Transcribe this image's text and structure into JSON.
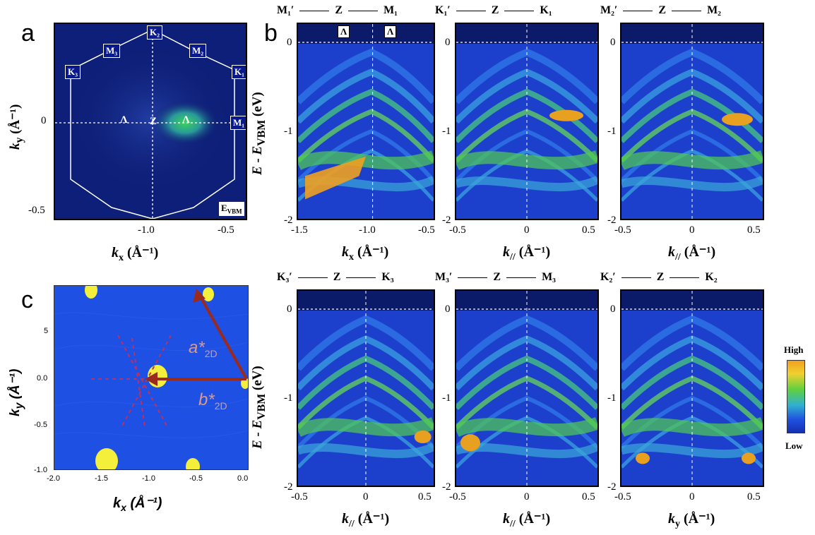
{
  "panel_a": {
    "letter": "a",
    "points": {
      "K2": "K₂",
      "M3": "M₃",
      "M2": "M₂",
      "K3": "K₃",
      "K1": "K₁",
      "M1": "M₁",
      "Lambda_left": "Λ",
      "Z": "Z",
      "Lambda_right": "Λ"
    },
    "corner_label": "E",
    "corner_label_sub": "VBM",
    "yticks": [
      "0",
      "-0.5"
    ],
    "xticks": [
      "-1.0",
      "-0.5"
    ],
    "ylabel_main": "k",
    "ylabel_sub": "y",
    "ylabel_unit": " (Å⁻¹)",
    "xlabel_main": "k",
    "xlabel_sub": "x",
    "xlabel_unit": " (Å⁻¹)"
  },
  "panel_b": {
    "letter": "b",
    "ylabel": "E - E",
    "ylabel_sub": "VBM",
    "ylabel_unit": " (eV)",
    "panels": [
      {
        "left": "M₁′",
        "mid": "Z",
        "right": "M₁",
        "xticks": [
          "-1.5",
          "-1.0",
          "-0.5"
        ],
        "xlabel": "k",
        "xsub": "x",
        "yticks": [
          "0",
          "-1",
          "-2"
        ],
        "markers": [
          "Λ",
          "Λ"
        ]
      },
      {
        "left": "K₁′",
        "mid": "Z",
        "right": "K₁",
        "xticks": [
          "-0.5",
          "0",
          "0.5"
        ],
        "xlabel": "k",
        "xsub": "//",
        "yticks": [
          "0",
          "-1",
          "-2"
        ]
      },
      {
        "left": "M₂′",
        "mid": "Z",
        "right": "M₂",
        "xticks": [
          "-0.5",
          "0",
          "0.5"
        ],
        "xlabel": "k",
        "xsub": "//",
        "yticks": [
          "0",
          "-1",
          "-2"
        ]
      },
      {
        "left": "K₃′",
        "mid": "Z",
        "right": "K₃",
        "xticks": [
          "-0.5",
          "0",
          "0.5"
        ],
        "xlabel": "k",
        "xsub": "//",
        "yticks": [
          "0",
          "-1",
          "-2"
        ]
      },
      {
        "left": "M₃′",
        "mid": "Z",
        "right": "M₃",
        "xticks": [
          "-0.5",
          "0",
          "0.5"
        ],
        "xlabel": "k",
        "xsub": "//",
        "yticks": [
          "0",
          "-1",
          "-2"
        ]
      },
      {
        "left": "K₂′",
        "mid": "Z",
        "right": "K₂",
        "xticks": [
          "-0.5",
          "0",
          "0.5"
        ],
        "xlabel": "k",
        "xsub": "y",
        "yticks": [
          "0",
          "-1",
          "-2"
        ]
      }
    ],
    "unit": " (Å⁻¹)"
  },
  "panel_c": {
    "letter": "c",
    "a_label": "a*",
    "a_sub": "2D",
    "b_label": "b*",
    "b_sub": "2D",
    "yticks": [
      "5",
      "0.0",
      "-0.5",
      "-1.0"
    ],
    "xticks": [
      "-2.0",
      "-1.5",
      "-1.0",
      "-0.5",
      "0.0"
    ],
    "ylabel": "k",
    "ysub": "y",
    "xlabel": "k",
    "xsub": "x",
    "unit": " (Å⁻¹)"
  },
  "colorbar": {
    "high": "High",
    "low": "Low"
  }
}
